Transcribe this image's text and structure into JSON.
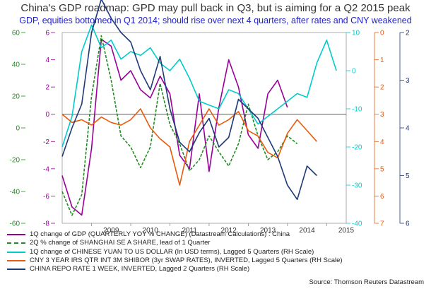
{
  "title": "China's GDP roadmap: GPD may pull back in Q3, but is aiming for a Q2 2015 peak",
  "subtitle": "GDP, equities bottomed in Q1 2014; should rise over next 4 quarters, after rates and CNY weakened",
  "source": "Source: Thomson Reuters Datastream",
  "chart_data": {
    "type": "line",
    "grid": false,
    "x_ticks": [
      "2009",
      "2010",
      "2011",
      "2012",
      "2013",
      "2014",
      "2015"
    ],
    "axes": {
      "gdp_1q": {
        "ticks": [
          "6",
          "4",
          "2",
          "0",
          "-2",
          "-4",
          "-6",
          "-8"
        ],
        "ylim": [
          -8,
          6
        ],
        "color": "#990099"
      },
      "shanghai_2q": {
        "ticks": [
          "60",
          "40",
          "20",
          "0",
          "-20",
          "-40",
          "-60"
        ],
        "ylim": [
          -60,
          60
        ],
        "color": "#228B22"
      },
      "cny_1q": {
        "ticks": [
          "10",
          "0",
          "-10",
          "-20",
          "-30",
          "-40"
        ],
        "ylim": [
          -40,
          10
        ],
        "color": "#00CCCC",
        "inverted": false
      },
      "shibor_3y": {
        "ticks": [
          "0",
          "1",
          "2",
          "3",
          "4",
          "5",
          "6",
          "7"
        ],
        "ylim": [
          0,
          7
        ],
        "inverted": true,
        "color": "#E85A0C"
      },
      "repo_1w": {
        "ticks": [
          "2",
          "3",
          "4",
          "5",
          "6"
        ],
        "ylim": [
          2,
          6
        ],
        "inverted": true,
        "color": "#1E3A78"
      }
    },
    "series": [
      {
        "name": "1Q change of GDP  (QUARTERLY YOY % CHANGE) (Datastream Calculations) : China",
        "color": "#990099",
        "style": "solid",
        "axis": "gdp_1q",
        "x": [
          2008.25,
          2008.5,
          2008.75,
          2009.0,
          2009.25,
          2009.5,
          2009.75,
          2010.0,
          2010.25,
          2010.5,
          2010.75,
          2011.0,
          2011.25,
          2011.5,
          2011.75,
          2012.0,
          2012.25,
          2012.5,
          2012.75,
          2013.0,
          2013.25,
          2013.5,
          2013.75,
          2014.0
        ],
        "y": [
          -4.5,
          -6.8,
          -7.4,
          -2.5,
          5.5,
          5.0,
          2.5,
          3.2,
          1.8,
          1.2,
          2.8,
          1.5,
          -3.0,
          -4.0,
          1.5,
          -4.2,
          0.5,
          4.0,
          2.0,
          -1.5,
          -2.5,
          1.5,
          2.5,
          0.5
        ]
      },
      {
        "name": "2Q % change of SHANGHAI SE A SHARE, lead of 1 Quarter",
        "color": "#228B22",
        "style": "dashed",
        "axis": "shanghai_2q",
        "x": [
          2008.25,
          2008.5,
          2008.75,
          2009.0,
          2009.25,
          2009.5,
          2009.75,
          2010.0,
          2010.25,
          2010.5,
          2010.75,
          2011.0,
          2011.25,
          2011.5,
          2011.75,
          2012.0,
          2012.25,
          2012.5,
          2012.75,
          2013.0,
          2013.25,
          2013.5,
          2013.75,
          2014.0,
          2014.25
        ],
        "y": [
          -40,
          -55,
          -42,
          20,
          58,
          30,
          -5,
          -12,
          -25,
          -12,
          28,
          2,
          -10,
          -27,
          -20,
          -5,
          -15,
          -24,
          -10,
          15,
          -5,
          -20,
          -15,
          -5,
          -10
        ]
      },
      {
        "name": "1Q change of CHINESE YUAN TO US DOLLAR (In USD terms), Lagged 5 Quarters (RH Scale)",
        "color": "#00CCCC",
        "style": "solid",
        "axis": "cny_1q",
        "x": [
          2008.25,
          2008.5,
          2008.75,
          2009.0,
          2009.25,
          2009.5,
          2009.75,
          2010.0,
          2010.25,
          2010.5,
          2010.75,
          2011.0,
          2011.25,
          2011.5,
          2011.75,
          2012.0,
          2012.25,
          2012.5,
          2012.75,
          2013.0,
          2013.25,
          2013.5,
          2013.75,
          2014.0,
          2014.25,
          2014.5,
          2014.75,
          2015.0,
          2015.25
        ],
        "y": [
          -20,
          -12,
          5,
          12,
          6,
          8,
          3,
          5,
          4,
          6,
          2,
          0,
          3,
          -2,
          -8,
          -9,
          -10,
          -5,
          -6,
          -10,
          -14,
          -12,
          -10,
          -8,
          -6,
          -7,
          2,
          8,
          0
        ]
      },
      {
        "name": "CNY 3 YEAR IRS QTR INT 3M SHIBOR (3yr SWAP RATES), INVERTED, Lagged 5 Quarters (RH Scale)",
        "color": "#E85A0C",
        "style": "solid",
        "axis": "shibor_3y",
        "x": [
          2008.25,
          2008.5,
          2008.75,
          2009.0,
          2009.25,
          2009.5,
          2009.75,
          2010.0,
          2010.25,
          2010.5,
          2010.75,
          2011.0,
          2011.25,
          2011.5,
          2011.75,
          2012.0,
          2012.25,
          2012.5,
          2012.75,
          2013.0,
          2013.25,
          2013.5,
          2013.75,
          2014.0,
          2014.25,
          2014.5,
          2014.75
        ],
        "y": [
          3.0,
          3.3,
          3.2,
          3.4,
          3.1,
          3.3,
          3.4,
          3.2,
          2.8,
          3.5,
          3.9,
          4.2,
          5.6,
          4.0,
          3.4,
          2.8,
          3.4,
          3.2,
          2.9,
          3.6,
          3.8,
          4.4,
          4.6,
          3.7,
          3.2,
          3.6,
          4.0
        ]
      },
      {
        "name": "CHINA REPO RATE 1 WEEK, INVERTED, Lagged 2 Quarters (RH Scale)",
        "color": "#1E3A78",
        "style": "solid",
        "axis": "repo_1w",
        "x": [
          2008.25,
          2008.5,
          2008.75,
          2009.0,
          2009.25,
          2009.5,
          2009.75,
          2010.0,
          2010.25,
          2010.5,
          2010.75,
          2011.0,
          2011.25,
          2011.5,
          2011.75,
          2012.0,
          2012.25,
          2012.5,
          2012.75,
          2013.0,
          2013.25,
          2013.5,
          2013.75,
          2014.0,
          2014.25,
          2014.5,
          2014.75
        ],
        "y": [
          4.6,
          4.0,
          3.5,
          2.0,
          1.3,
          1.7,
          2.0,
          2.2,
          2.8,
          3.2,
          2.5,
          3.6,
          4.3,
          4.5,
          4.1,
          3.8,
          4.4,
          4.2,
          3.4,
          3.6,
          3.8,
          4.2,
          4.6,
          5.2,
          5.5,
          4.8,
          5.0
        ]
      }
    ]
  }
}
